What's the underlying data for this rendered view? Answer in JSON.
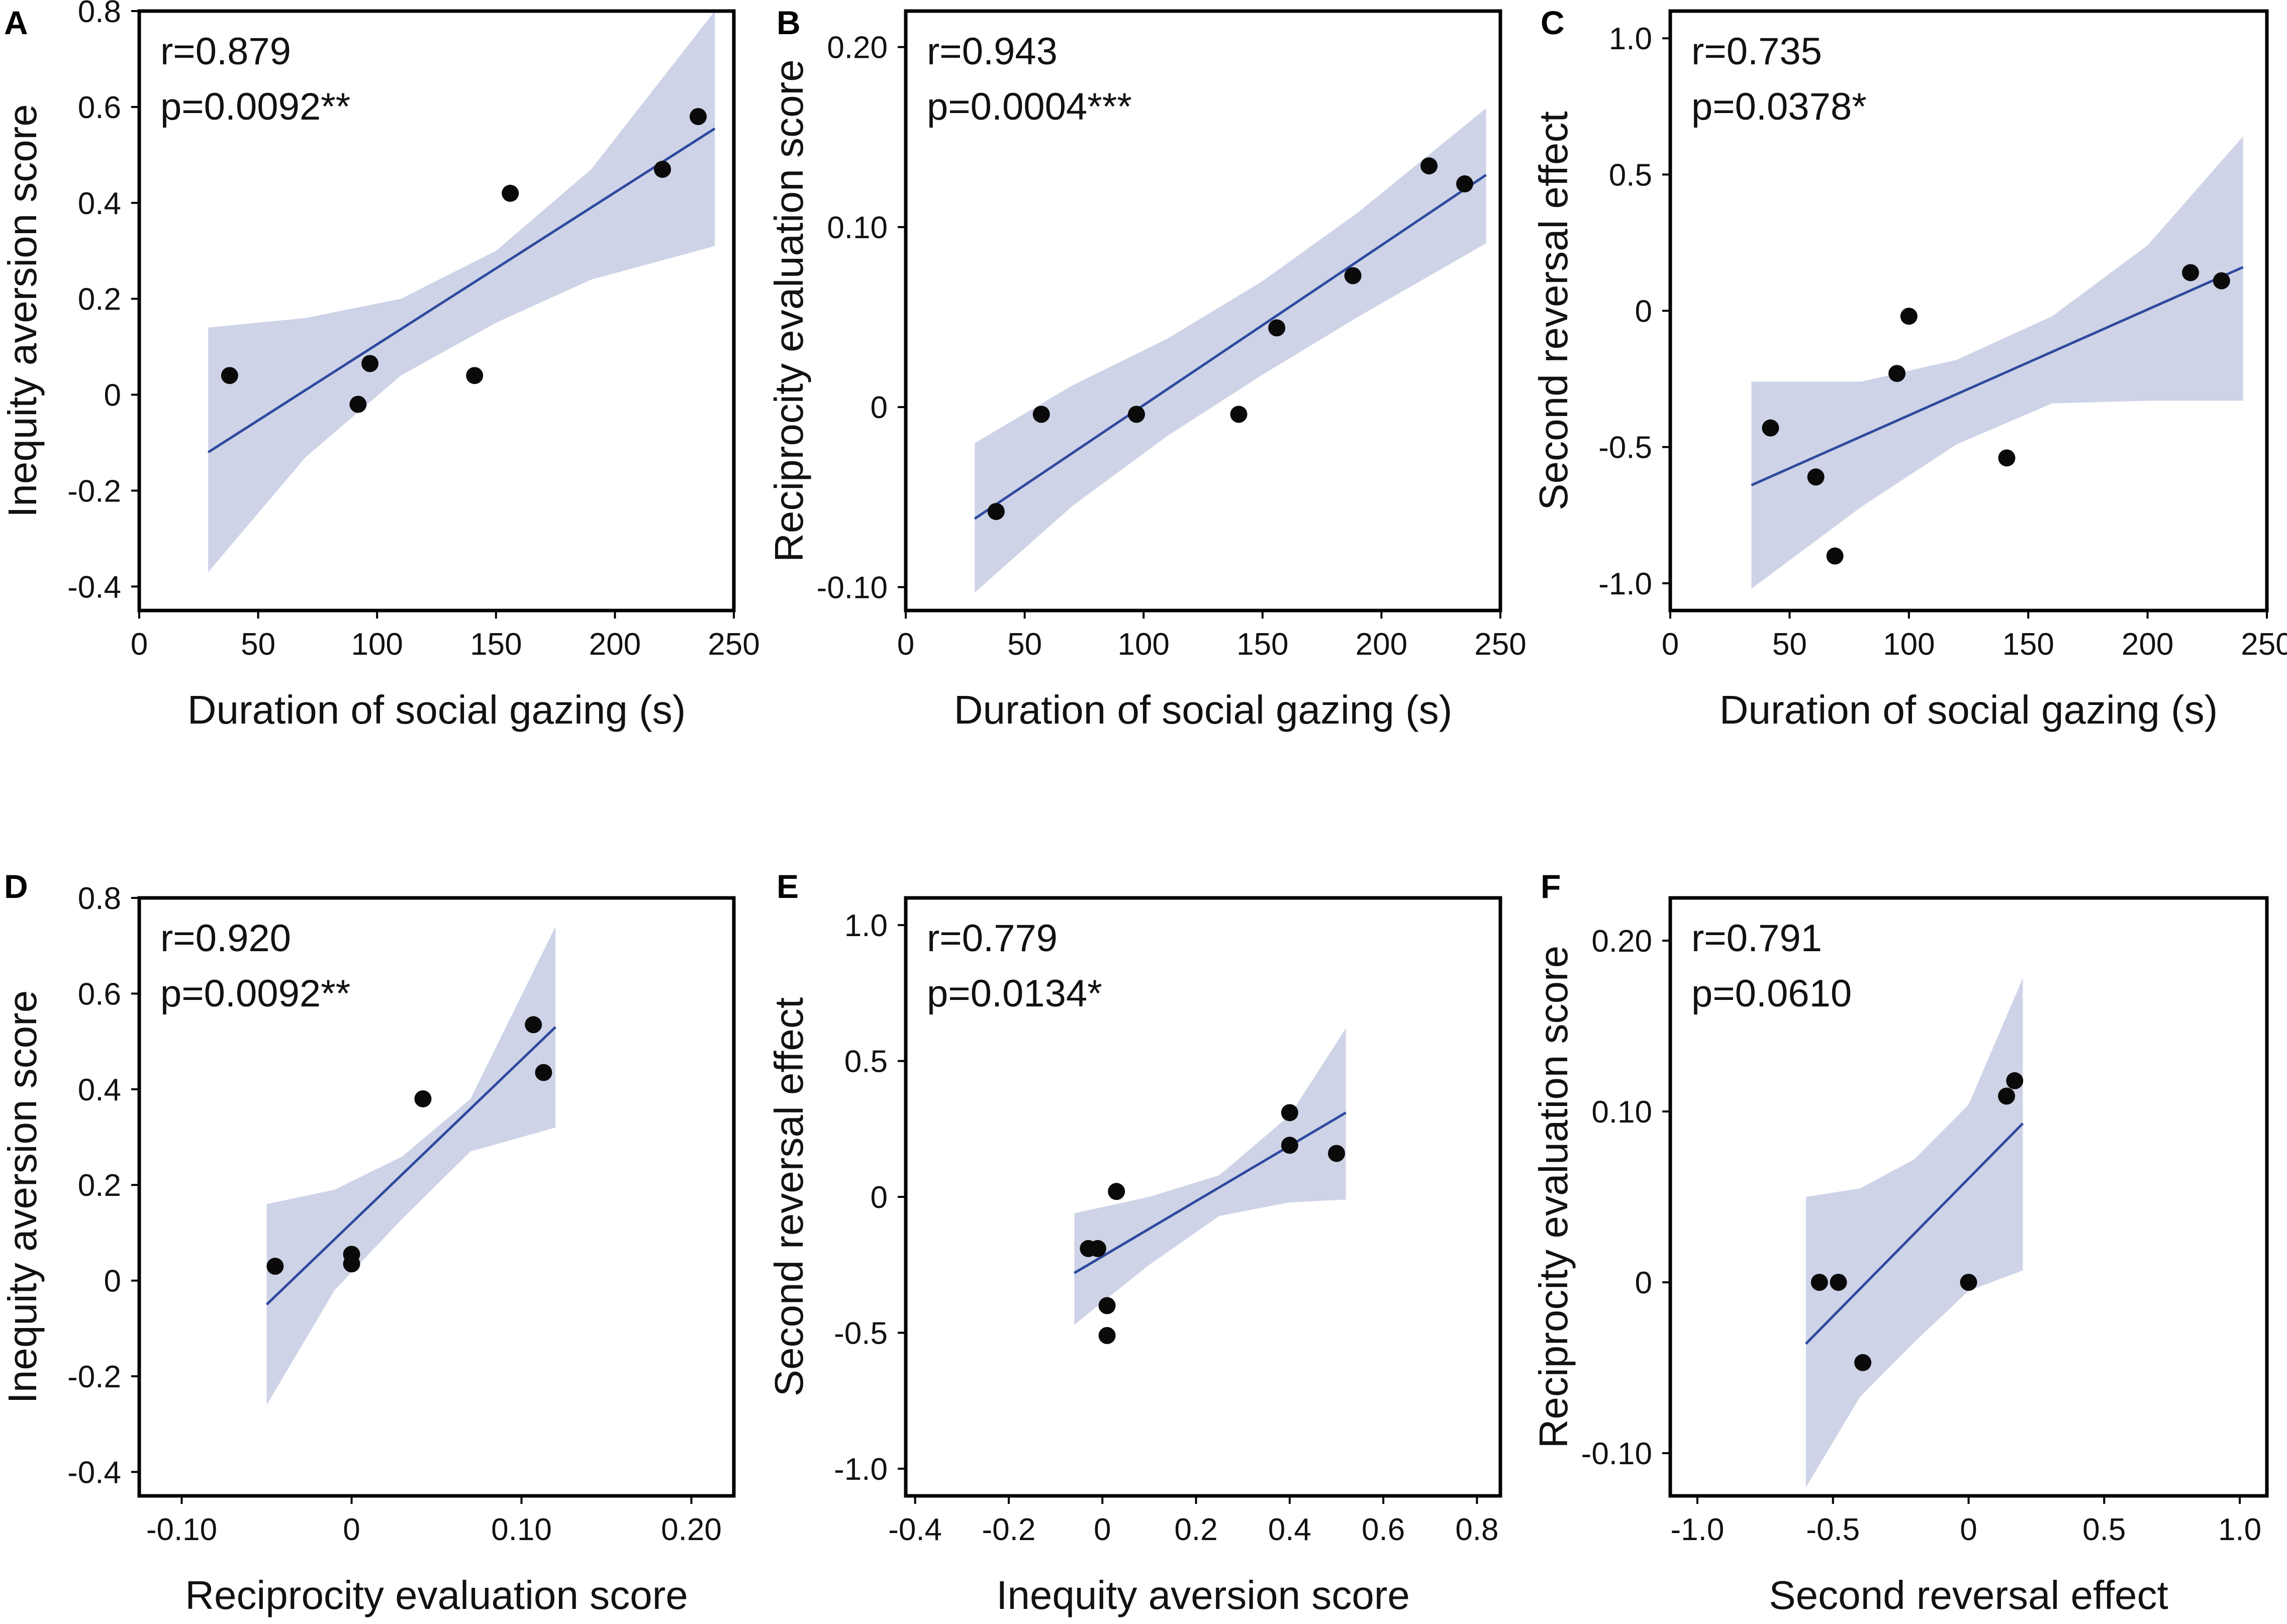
{
  "colors": {
    "band": "#c5cbe3",
    "line": "#2e4a9e",
    "point": "#0a0a0a",
    "frame": "#000000"
  },
  "chart_data": [
    {
      "id": "A",
      "type": "scatter",
      "r_text": "r=0.879",
      "p_text": "p=0.0092**",
      "xlabel": "Duration of social gazing (s)",
      "ylabel": "Inequity aversion score",
      "xlim": [
        0,
        250
      ],
      "ylim": [
        -0.45,
        0.8
      ],
      "xticks": [
        0,
        50,
        100,
        150,
        200,
        250
      ],
      "xtick_labels": [
        "0",
        "50",
        "100",
        "150",
        "200",
        "250"
      ],
      "yticks": [
        -0.4,
        -0.2,
        0,
        0.2,
        0.4,
        0.6,
        0.8
      ],
      "ytick_labels": [
        "-0.4",
        "-0.2",
        "0",
        "0.2",
        "0.4",
        "0.6",
        "0.8"
      ],
      "points": [
        [
          38,
          0.04
        ],
        [
          92,
          -0.02
        ],
        [
          97,
          0.065
        ],
        [
          141,
          0.04
        ],
        [
          156,
          0.42
        ],
        [
          220,
          0.47
        ],
        [
          235,
          0.58
        ]
      ],
      "fit": {
        "x0": 29,
        "y0": -0.12,
        "x1": 242,
        "y1": 0.555
      },
      "band_upper": [
        [
          29,
          0.14
        ],
        [
          70,
          0.16
        ],
        [
          110,
          0.2
        ],
        [
          150,
          0.3
        ],
        [
          190,
          0.47
        ],
        [
          242,
          0.8
        ]
      ],
      "band_lower": [
        [
          29,
          -0.37
        ],
        [
          70,
          -0.13
        ],
        [
          110,
          0.04
        ],
        [
          150,
          0.15
        ],
        [
          190,
          0.24
        ],
        [
          242,
          0.31
        ]
      ]
    },
    {
      "id": "B",
      "type": "scatter",
      "r_text": "r=0.943",
      "p_text": "p=0.0004***",
      "xlabel": "Duration of social gazing (s)",
      "ylabel": "Reciprocity evaluation score",
      "xlim": [
        0,
        250
      ],
      "ylim": [
        -0.113,
        0.22
      ],
      "xticks": [
        0,
        50,
        100,
        150,
        200,
        250
      ],
      "xtick_labels": [
        "0",
        "50",
        "100",
        "150",
        "200",
        "250"
      ],
      "yticks": [
        -0.1,
        0,
        0.1,
        0.2
      ],
      "ytick_labels": [
        "-0.10",
        "0",
        "0.10",
        "0.20"
      ],
      "points": [
        [
          38,
          -0.058
        ],
        [
          57,
          -0.004
        ],
        [
          97,
          -0.004
        ],
        [
          140,
          -0.004
        ],
        [
          156,
          0.044
        ],
        [
          188,
          0.073
        ],
        [
          220,
          0.134
        ],
        [
          235,
          0.124
        ]
      ],
      "fit": {
        "x0": 29,
        "y0": -0.062,
        "x1": 244,
        "y1": 0.129
      },
      "band_upper": [
        [
          29,
          -0.02
        ],
        [
          70,
          0.012
        ],
        [
          110,
          0.038
        ],
        [
          150,
          0.07
        ],
        [
          190,
          0.108
        ],
        [
          244,
          0.166
        ]
      ],
      "band_lower": [
        [
          29,
          -0.103
        ],
        [
          70,
          -0.055
        ],
        [
          110,
          -0.016
        ],
        [
          150,
          0.018
        ],
        [
          190,
          0.05
        ],
        [
          244,
          0.091
        ]
      ]
    },
    {
      "id": "C",
      "type": "scatter",
      "r_text": "r=0.735",
      "p_text": "p=0.0378*",
      "xlabel": "Duration of social gazing (s)",
      "ylabel": "Second reversal effect",
      "xlim": [
        0,
        250
      ],
      "ylim": [
        -1.1,
        1.1
      ],
      "xticks": [
        0,
        50,
        100,
        150,
        200,
        250
      ],
      "xtick_labels": [
        "0",
        "50",
        "100",
        "150",
        "200",
        "250"
      ],
      "yticks": [
        -1.0,
        -0.5,
        0,
        0.5,
        1.0
      ],
      "ytick_labels": [
        "-1.0",
        "-0.5",
        "0",
        "0.5",
        "1.0"
      ],
      "points": [
        [
          42,
          -0.43
        ],
        [
          61,
          -0.61
        ],
        [
          69,
          -0.9
        ],
        [
          95,
          -0.23
        ],
        [
          100,
          -0.02
        ],
        [
          141,
          -0.54
        ],
        [
          218,
          0.14
        ],
        [
          231,
          0.11
        ]
      ],
      "fit": {
        "x0": 34,
        "y0": -0.64,
        "x1": 240,
        "y1": 0.16
      },
      "band_upper": [
        [
          34,
          -0.26
        ],
        [
          80,
          -0.26
        ],
        [
          120,
          -0.18
        ],
        [
          160,
          -0.02
        ],
        [
          200,
          0.24
        ],
        [
          240,
          0.64
        ]
      ],
      "band_lower": [
        [
          34,
          -1.02
        ],
        [
          80,
          -0.72
        ],
        [
          120,
          -0.49
        ],
        [
          160,
          -0.34
        ],
        [
          200,
          -0.33
        ],
        [
          240,
          -0.33
        ]
      ]
    },
    {
      "id": "D",
      "type": "scatter",
      "r_text": "r=0.920",
      "p_text": "p=0.0092**",
      "xlabel": "Reciprocity evaluation score",
      "ylabel": "Inequity aversion score",
      "xlim": [
        -0.125,
        0.225
      ],
      "ylim": [
        -0.45,
        0.8
      ],
      "xticks": [
        -0.1,
        0,
        0.1,
        0.2
      ],
      "xtick_labels": [
        "-0.10",
        "0",
        "0.10",
        "0.20"
      ],
      "yticks": [
        -0.4,
        -0.2,
        0,
        0.2,
        0.4,
        0.6,
        0.8
      ],
      "ytick_labels": [
        "-0.4",
        "-0.2",
        "0",
        "0.2",
        "0.4",
        "0.6",
        "0.8"
      ],
      "points": [
        [
          -0.045,
          0.03
        ],
        [
          0,
          0.035
        ],
        [
          0,
          0.055
        ],
        [
          0.042,
          0.38
        ],
        [
          0.107,
          0.535
        ],
        [
          0.113,
          0.435
        ]
      ],
      "fit": {
        "x0": -0.05,
        "y0": -0.05,
        "x1": 0.12,
        "y1": 0.53
      },
      "band_upper": [
        [
          -0.05,
          0.16
        ],
        [
          -0.01,
          0.19
        ],
        [
          0.03,
          0.26
        ],
        [
          0.07,
          0.38
        ],
        [
          0.12,
          0.74
        ]
      ],
      "band_lower": [
        [
          -0.05,
          -0.26
        ],
        [
          -0.01,
          -0.02
        ],
        [
          0.03,
          0.13
        ],
        [
          0.07,
          0.27
        ],
        [
          0.12,
          0.32
        ]
      ]
    },
    {
      "id": "E",
      "type": "scatter",
      "r_text": "r=0.779",
      "p_text": "p=0.0134*",
      "xlabel": "Inequity aversion score",
      "ylabel": "Second reversal effect",
      "xlim": [
        -0.42,
        0.85
      ],
      "ylim": [
        -1.1,
        1.1
      ],
      "xticks": [
        -0.4,
        -0.2,
        0,
        0.2,
        0.4,
        0.6,
        0.8
      ],
      "xtick_labels": [
        "-0.4",
        "-0.2",
        "0",
        "0.2",
        "0.4",
        "0.6",
        "0.8"
      ],
      "yticks": [
        -1.0,
        -0.5,
        0,
        0.5,
        1.0
      ],
      "ytick_labels": [
        "-1.0",
        "-0.5",
        "0",
        "0.5",
        "1.0"
      ],
      "points": [
        [
          -0.03,
          -0.19
        ],
        [
          -0.01,
          -0.19
        ],
        [
          0.03,
          0.02
        ],
        [
          0.01,
          -0.4
        ],
        [
          0.01,
          -0.51
        ],
        [
          0.4,
          0.31
        ],
        [
          0.4,
          0.19
        ],
        [
          0.5,
          0.16
        ]
      ],
      "fit": {
        "x0": -0.06,
        "y0": -0.28,
        "x1": 0.52,
        "y1": 0.31
      },
      "band_upper": [
        [
          -0.06,
          -0.06
        ],
        [
          0.1,
          0.0
        ],
        [
          0.25,
          0.08
        ],
        [
          0.4,
          0.3
        ],
        [
          0.52,
          0.62
        ]
      ],
      "band_lower": [
        [
          -0.06,
          -0.47
        ],
        [
          0.1,
          -0.25
        ],
        [
          0.25,
          -0.07
        ],
        [
          0.4,
          -0.02
        ],
        [
          0.52,
          -0.01
        ]
      ]
    },
    {
      "id": "F",
      "type": "scatter",
      "r_text": "r=0.791",
      "p_text": "p=0.0610",
      "xlabel": "Second reversal effect",
      "ylabel": "Reciprocity evaluation score",
      "xlim": [
        -1.1,
        1.1
      ],
      "ylim": [
        -0.125,
        0.225
      ],
      "xticks": [
        -1.0,
        -0.5,
        0,
        0.5,
        1.0
      ],
      "xtick_labels": [
        "-1.0",
        "-0.5",
        "0",
        "0.5",
        "1.0"
      ],
      "yticks": [
        -0.1,
        0,
        0.1,
        0.2
      ],
      "ytick_labels": [
        "-0.10",
        "0",
        "0.10",
        "0.20"
      ],
      "points": [
        [
          -0.55,
          0
        ],
        [
          -0.48,
          0
        ],
        [
          -0.39,
          -0.047
        ],
        [
          0,
          0
        ],
        [
          0.14,
          0.109
        ],
        [
          0.17,
          0.118
        ]
      ],
      "fit": {
        "x0": -0.6,
        "y0": -0.036,
        "x1": 0.2,
        "y1": 0.093
      },
      "band_upper": [
        [
          -0.6,
          0.05
        ],
        [
          -0.4,
          0.055
        ],
        [
          -0.2,
          0.072
        ],
        [
          0,
          0.104
        ],
        [
          0.2,
          0.178
        ]
      ],
      "band_lower": [
        [
          -0.6,
          -0.12
        ],
        [
          -0.4,
          -0.067
        ],
        [
          -0.2,
          -0.035
        ],
        [
          0,
          -0.005
        ],
        [
          0.2,
          0.007
        ]
      ]
    }
  ]
}
